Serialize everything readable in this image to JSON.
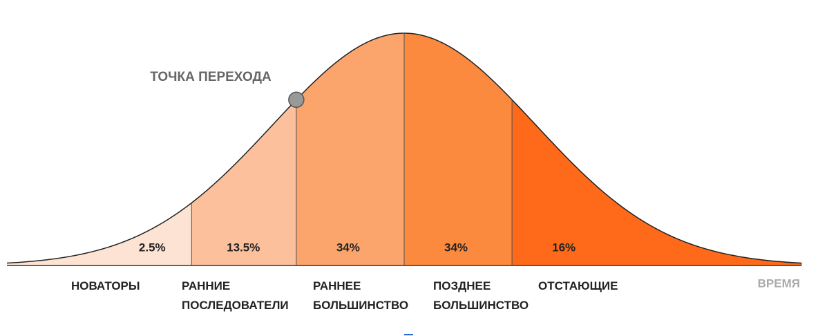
{
  "chart_data": {
    "type": "bell",
    "categories": [
      "НОВАТОРЫ",
      "РАННИЕ ПОСЛЕДОВАТЕЛИ",
      "РАННЕЕ БОЛЬШИНСТВО",
      "ПОЗДНЕЕ БОЛЬШИНСТВО",
      "ОТСТАЮЩИЕ"
    ],
    "values": [
      2.5,
      13.5,
      34,
      34,
      16
    ],
    "value_labels": [
      "2.5%",
      "13.5%",
      "34%",
      "34%",
      "16%"
    ],
    "colors": [
      "#fde3d3",
      "#fcc19c",
      "#fba56d",
      "#fc8a3e",
      "#ff6a1a"
    ],
    "annotation": "ТОЧКА ПЕРЕХОДА",
    "x_label": "ВРЕМЯ"
  }
}
